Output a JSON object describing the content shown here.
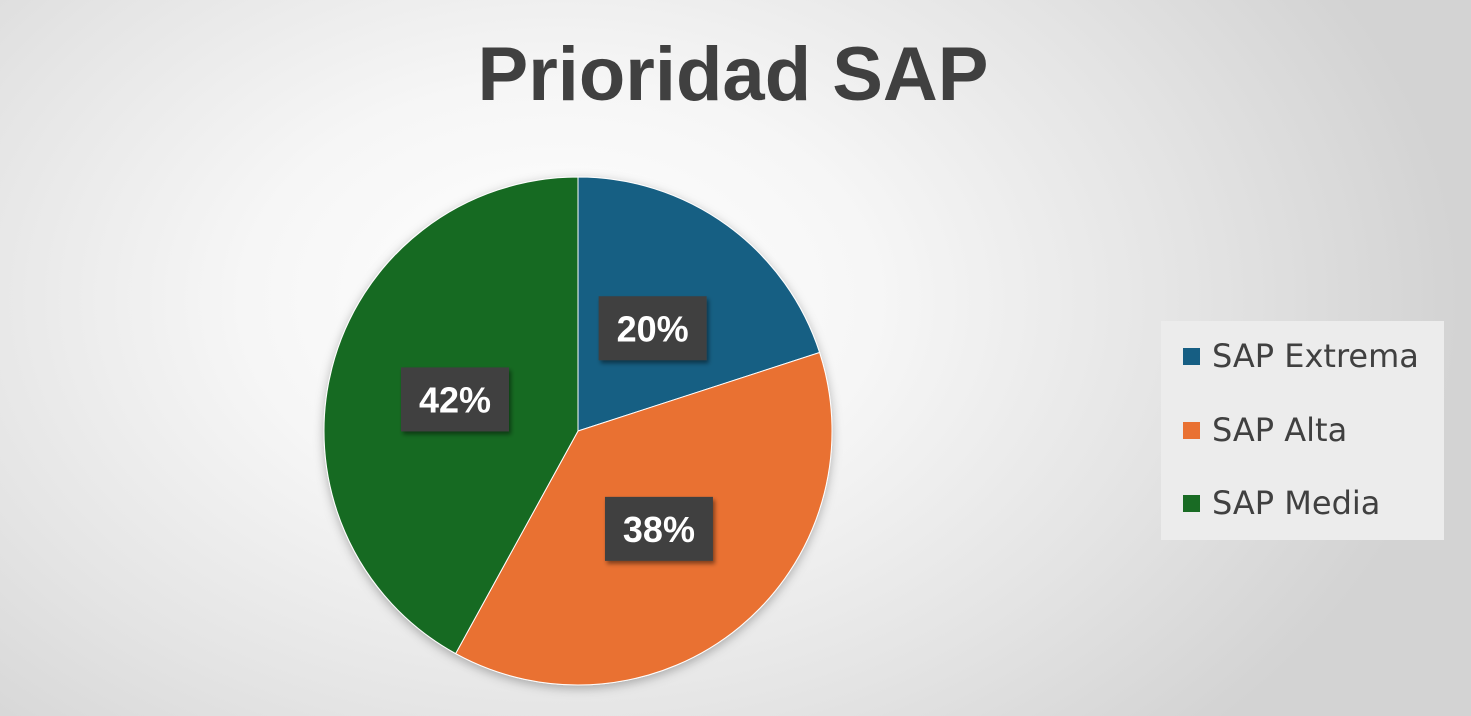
{
  "chart_data": {
    "type": "pie",
    "title": "Prioridad SAP",
    "categories": [
      "SAP Extrema",
      "SAP Alta",
      "SAP Media"
    ],
    "values": [
      20,
      38,
      42
    ],
    "data_labels": [
      "20%",
      "38%",
      "42%"
    ],
    "colors": [
      "#165e83",
      "#e97132",
      "#196b24"
    ],
    "legend_position": "right"
  }
}
